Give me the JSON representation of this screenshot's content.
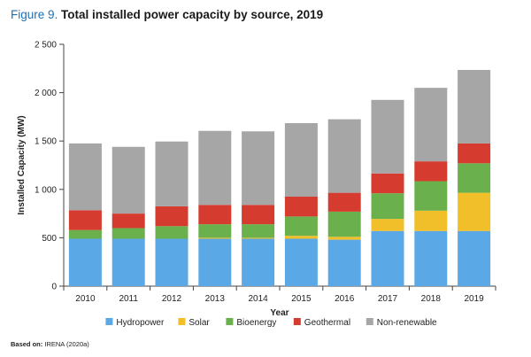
{
  "figure": {
    "number": "Figure 9.",
    "title": "Total installed power capacity by source, 2019"
  },
  "source": {
    "label": "Based on:",
    "text": "IRENA (2020a)"
  },
  "chart_data": {
    "type": "bar",
    "stacked": true,
    "categories": [
      "2010",
      "2011",
      "2012",
      "2013",
      "2014",
      "2015",
      "2016",
      "2017",
      "2018",
      "2019"
    ],
    "xlabel": "Year",
    "ylabel": "Installed Capacity (MW)",
    "ylim": [
      0,
      2500
    ],
    "yticks": [
      0,
      500,
      1000,
      1500,
      2000,
      2500
    ],
    "ytick_labels": [
      "0",
      "500",
      "1 000",
      "1 500",
      "2 000",
      "2 500"
    ],
    "grid": false,
    "legend_position": "bottom",
    "series": [
      {
        "name": "Hydropower",
        "color": "#5aa9e6",
        "values": [
          490,
          490,
          490,
          490,
          490,
          490,
          480,
          570,
          570,
          570
        ]
      },
      {
        "name": "Solar",
        "color": "#f0bf2a",
        "values": [
          0,
          0,
          0,
          10,
          10,
          30,
          30,
          125,
          210,
          395
        ]
      },
      {
        "name": "Bioenergy",
        "color": "#6ab04c",
        "values": [
          90,
          110,
          130,
          140,
          140,
          200,
          260,
          265,
          305,
          305
        ]
      },
      {
        "name": "Geothermal",
        "color": "#d63b2f",
        "values": [
          205,
          150,
          205,
          200,
          200,
          205,
          195,
          205,
          205,
          205
        ]
      },
      {
        "name": "Non-renewable",
        "color": "#a6a6a6",
        "values": [
          690,
          690,
          670,
          765,
          760,
          760,
          760,
          760,
          760,
          760
        ]
      }
    ]
  }
}
